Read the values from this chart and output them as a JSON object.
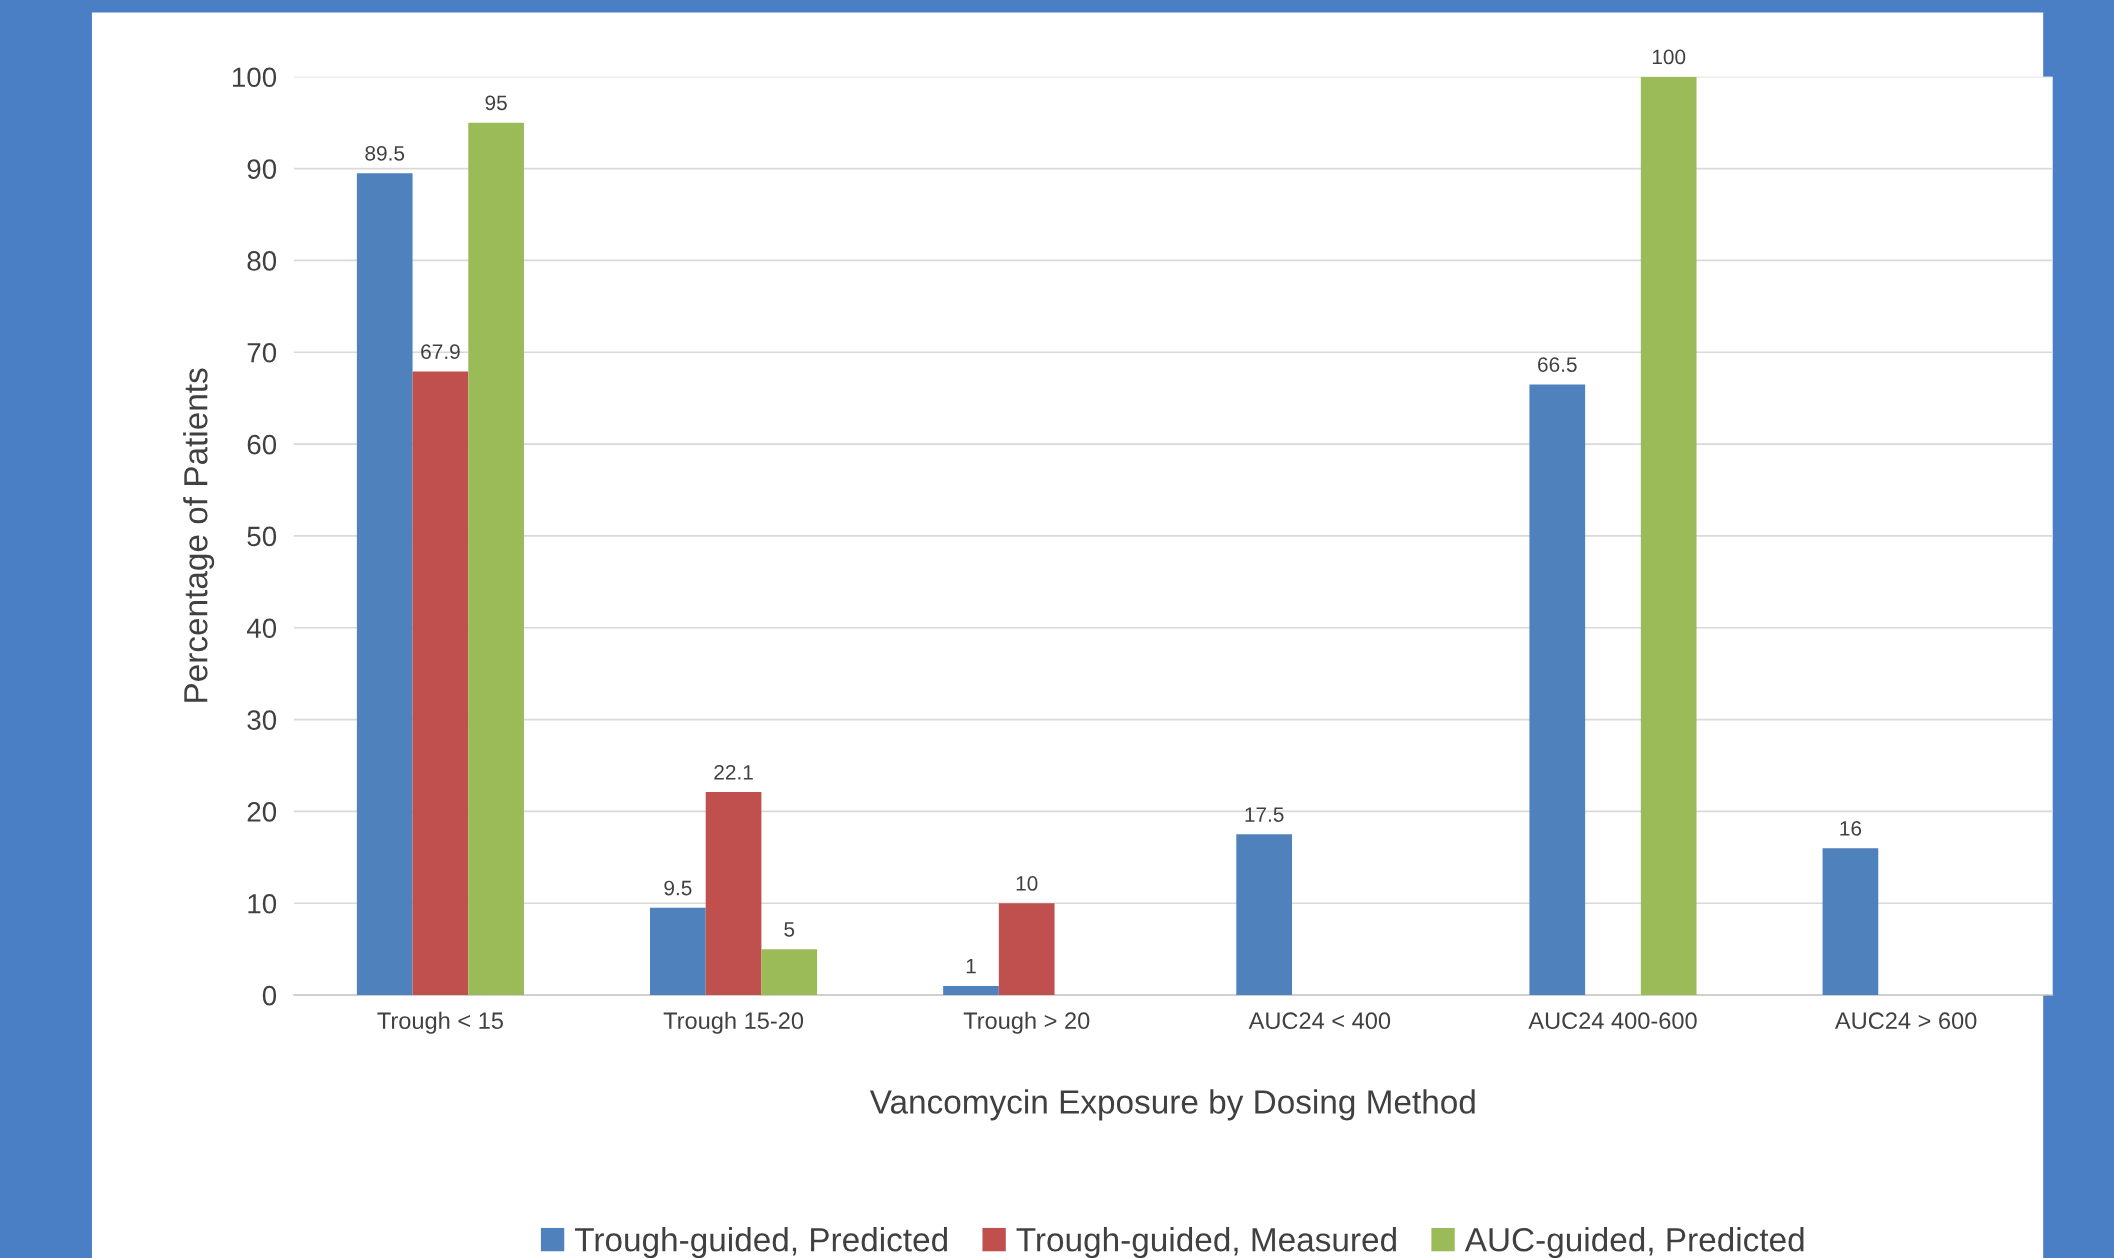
{
  "chart_data": {
    "type": "bar",
    "xlabel": "Vancomycin Exposure by Dosing Method",
    "ylabel": "Percentage of Patients",
    "categories": [
      "Trough < 15",
      "Trough 15-20",
      "Trough > 20",
      "AUC24 < 400",
      "AUC24 400-600",
      "AUC24 > 600"
    ],
    "series": [
      {
        "name": "Trough-guided, Predicted",
        "color": "#4f81bd",
        "values": [
          89.5,
          9.5,
          1,
          17.5,
          66.5,
          16
        ]
      },
      {
        "name": "Trough-guided, Measured",
        "color": "#c0504d",
        "values": [
          67.9,
          22.1,
          10,
          null,
          null,
          null
        ]
      },
      {
        "name": "AUC-guided, Predicted",
        "color": "#9bbb59",
        "values": [
          95,
          5,
          null,
          null,
          100,
          null
        ]
      }
    ],
    "ylim": [
      0,
      100
    ],
    "yticks": [
      0,
      10,
      20,
      30,
      40,
      50,
      60,
      70,
      80,
      90,
      100
    ],
    "grid": "y",
    "legend": "bottom",
    "data_labels": true
  }
}
